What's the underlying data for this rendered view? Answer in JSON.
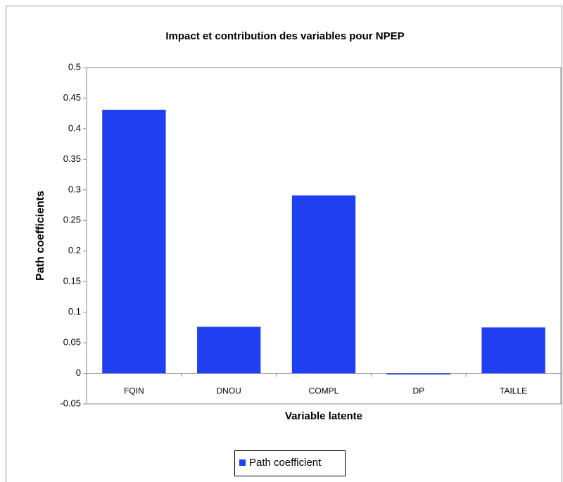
{
  "chart_data": {
    "type": "bar",
    "title": "Impact et contribution des variables pour NPEP",
    "x_label": "Variable latente",
    "y_label": "Path coefficients",
    "categories": [
      "FQIN",
      "DNOU",
      "COMPL",
      "DP",
      "TAILLE"
    ],
    "series": [
      {
        "name": "Path coefficient",
        "color": "#1f3ff0",
        "values": [
          0.431,
          0.076,
          0.291,
          -0.002,
          0.075
        ]
      }
    ],
    "ylim": [
      -0.05,
      0.5
    ],
    "yticks": [
      -0.05,
      0,
      0.05,
      0.1,
      0.15,
      0.2,
      0.25,
      0.3,
      0.35,
      0.4,
      0.45,
      0.5
    ],
    "grid": false,
    "legend": "bottom"
  }
}
